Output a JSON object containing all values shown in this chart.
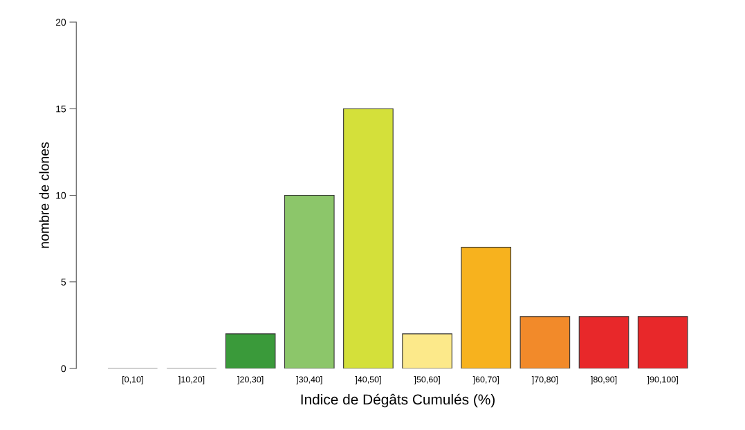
{
  "chart_data": {
    "type": "bar",
    "xlabel": "Indice de Dégâts Cumulés (%)",
    "ylabel": "nombre de clones",
    "categories": [
      "[0,10]",
      "]10,20]",
      "]20,30]",
      "]30,40]",
      "]40,50]",
      "]50,60]",
      "]60,70]",
      "]70,80]",
      "]80,90]",
      "]90,100]"
    ],
    "values": [
      0,
      0,
      2,
      10,
      15,
      2,
      7,
      3,
      3,
      3
    ],
    "colors": [
      "#333333",
      "#333333",
      "#3a9a3a",
      "#8cc66a",
      "#d4e03a",
      "#fce98a",
      "#f7b21e",
      "#f28a2a",
      "#e8282a",
      "#e8282a"
    ],
    "ylim": [
      0,
      20
    ],
    "yticks": [
      0,
      5,
      10,
      15,
      20
    ],
    "grid": false,
    "legend": false
  }
}
